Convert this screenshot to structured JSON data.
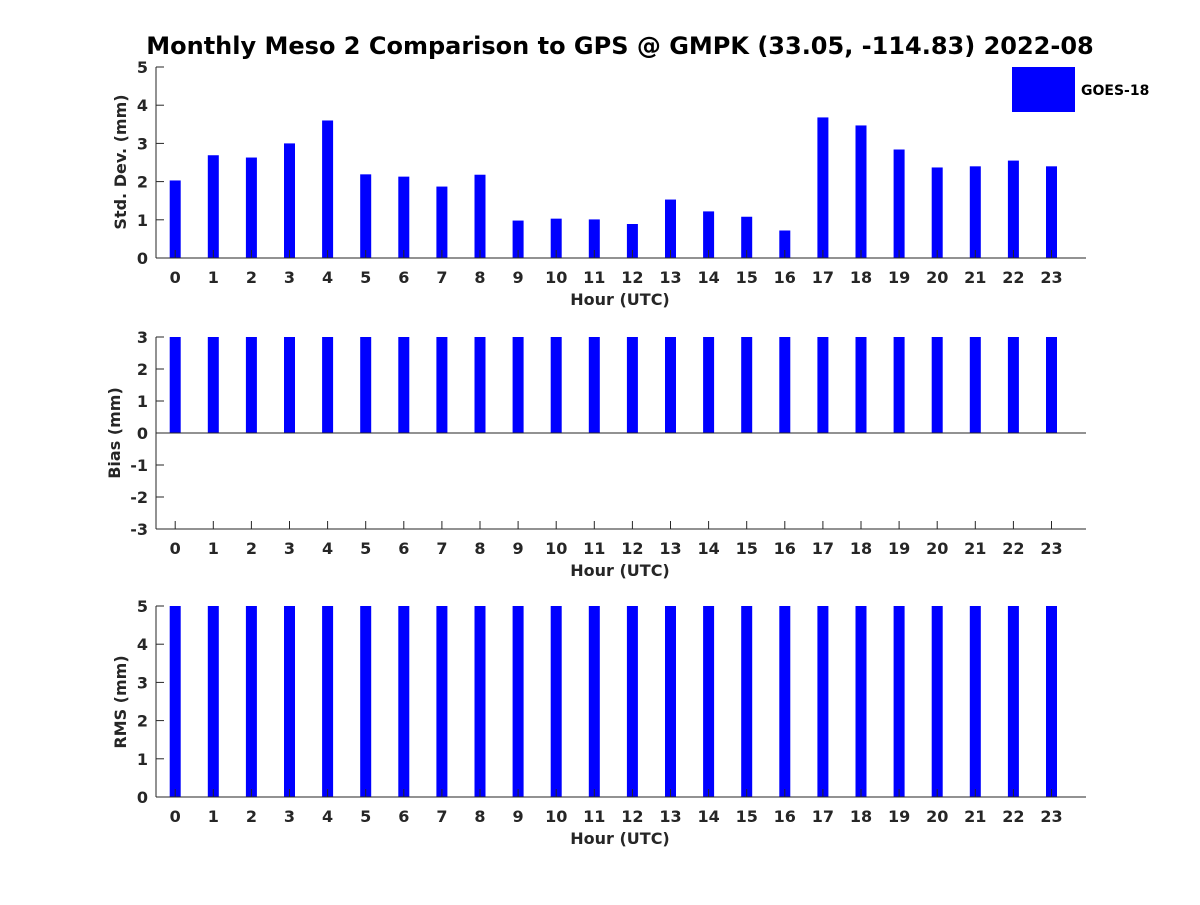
{
  "title": "Monthly Meso 2 Comparison to GPS @ GMPK (33.05, -114.83) 2022-08",
  "legend": {
    "label": "GOES-18",
    "placement": "top-right"
  },
  "colors": {
    "bar": "#0000ff",
    "axis": "#262626",
    "background": "#ffffff"
  },
  "chart_data": [
    {
      "type": "bar",
      "series_name": "GOES-18",
      "categories": [
        "0",
        "1",
        "2",
        "3",
        "4",
        "5",
        "6",
        "7",
        "8",
        "9",
        "10",
        "11",
        "12",
        "13",
        "14",
        "15",
        "16",
        "17",
        "18",
        "19",
        "20",
        "21",
        "22",
        "23"
      ],
      "values": [
        2.03,
        2.69,
        2.63,
        3.0,
        3.6,
        2.19,
        2.13,
        1.87,
        2.18,
        0.98,
        1.03,
        1.01,
        0.89,
        1.53,
        1.22,
        1.08,
        0.72,
        3.68,
        3.47,
        2.84,
        2.37,
        2.4,
        2.55,
        2.4
      ],
      "xlabel": "Hour (UTC)",
      "ylabel": "Std. Dev. (mm)",
      "ylim": [
        0,
        5
      ],
      "yticks": [
        "0",
        "1",
        "2",
        "3",
        "4",
        "5"
      ]
    },
    {
      "type": "bar",
      "series_name": "GOES-18",
      "categories": [
        "0",
        "1",
        "2",
        "3",
        "4",
        "5",
        "6",
        "7",
        "8",
        "9",
        "10",
        "11",
        "12",
        "13",
        "14",
        "15",
        "16",
        "17",
        "18",
        "19",
        "20",
        "21",
        "22",
        "23"
      ],
      "values": [
        3,
        3,
        3,
        3,
        3,
        3,
        3,
        3,
        3,
        3,
        3,
        3,
        3,
        3,
        3,
        3,
        3,
        3,
        3,
        3,
        3,
        3,
        3,
        3
      ],
      "xlabel": "Hour (UTC)",
      "ylabel": "Bias (mm)",
      "ylim": [
        -3,
        3
      ],
      "yticks": [
        "-3",
        "-2",
        "-1",
        "0",
        "1",
        "2",
        "3"
      ]
    },
    {
      "type": "bar",
      "series_name": "GOES-18",
      "categories": [
        "0",
        "1",
        "2",
        "3",
        "4",
        "5",
        "6",
        "7",
        "8",
        "9",
        "10",
        "11",
        "12",
        "13",
        "14",
        "15",
        "16",
        "17",
        "18",
        "19",
        "20",
        "21",
        "22",
        "23"
      ],
      "values": [
        5,
        5,
        5,
        5,
        5,
        5,
        5,
        5,
        5,
        5,
        5,
        5,
        5,
        5,
        5,
        5,
        5,
        5,
        5,
        5,
        5,
        5,
        5,
        5
      ],
      "xlabel": "Hour (UTC)",
      "ylabel": "RMS (mm)",
      "ylim": [
        0,
        5
      ],
      "yticks": [
        "0",
        "1",
        "2",
        "3",
        "4",
        "5"
      ]
    }
  ]
}
